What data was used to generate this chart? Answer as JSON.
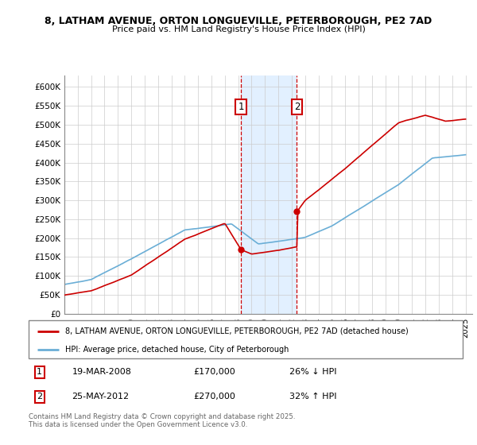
{
  "title_line1": "8, LATHAM AVENUE, ORTON LONGUEVILLE, PETERBOROUGH, PE2 7AD",
  "title_line2": "Price paid vs. HM Land Registry's House Price Index (HPI)",
  "legend_label1": "8, LATHAM AVENUE, ORTON LONGUEVILLE, PETERBOROUGH, PE2 7AD (detached house)",
  "legend_label2": "HPI: Average price, detached house, City of Peterborough",
  "annotation1_date": "19-MAR-2008",
  "annotation1_price": "£170,000",
  "annotation1_hpi": "26% ↓ HPI",
  "annotation2_date": "25-MAY-2012",
  "annotation2_price": "£270,000",
  "annotation2_hpi": "32% ↑ HPI",
  "sale1_year": 2008.21,
  "sale1_price": 170000,
  "sale2_year": 2012.39,
  "sale2_price": 270000,
  "footer": "Contains HM Land Registry data © Crown copyright and database right 2025.\nThis data is licensed under the Open Government Licence v3.0.",
  "hpi_color": "#6aaed6",
  "price_color": "#cc0000",
  "shade_color": "#ddeeff",
  "ylabel_ticks": [
    "£0",
    "£50K",
    "£100K",
    "£150K",
    "£200K",
    "£250K",
    "£300K",
    "£350K",
    "£400K",
    "£450K",
    "£500K",
    "£550K",
    "£600K"
  ],
  "ytick_values": [
    0,
    50000,
    100000,
    150000,
    200000,
    250000,
    300000,
    350000,
    400000,
    450000,
    500000,
    550000,
    600000
  ],
  "ymax": 630000,
  "xmin": 1995,
  "xmax": 2025.5
}
